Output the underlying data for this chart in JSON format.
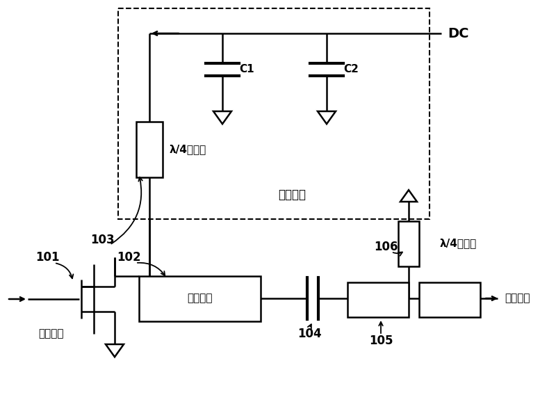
{
  "bg_color": "#ffffff",
  "dc_label": "DC",
  "network_label": "馈电网络",
  "microstrip_label1": "λ/4微带线",
  "microstrip_label2": "λ/4微带线",
  "c1_label": "C1",
  "c2_label": "C2",
  "matching_label": "匹配电路",
  "rf_in_label": "射频输入",
  "rf_out_label": "射频输出",
  "lbl_101": "101",
  "lbl_102": "102",
  "lbl_103": "103",
  "lbl_104": "104",
  "lbl_105": "105",
  "lbl_106": "106"
}
